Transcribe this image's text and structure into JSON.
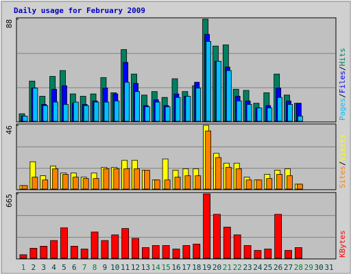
{
  "title": "Daily usage for February 2009",
  "categories": [
    "1",
    "2",
    "3",
    "4",
    "5",
    "6",
    "7",
    "8",
    "9",
    "10",
    "11",
    "12",
    "13",
    "14",
    "15",
    "16",
    "17",
    "18",
    "19",
    "20",
    "21",
    "22",
    "23",
    "24",
    "25",
    "26",
    "27",
    "28",
    "29",
    "30",
    "31"
  ],
  "category_colors": [
    "#008040",
    "#004040",
    "#004040",
    "#004040",
    "#004040",
    "#004040",
    "#008040",
    "#008040",
    "#004040",
    "#004040",
    "#004040",
    "#004040",
    "#004040",
    "#008040",
    "#008040",
    "#004040",
    "#004040",
    "#004040",
    "#004040",
    "#004040",
    "#008040",
    "#008040",
    "#004040",
    "#004040",
    "#004040",
    "#004040",
    "#004040",
    "#008040",
    "#008040",
    "#004040",
    "#004040"
  ],
  "chart_data": [
    {
      "type": "bar",
      "ylim": [
        0,
        88
      ],
      "yticks": [
        88
      ],
      "grid_divisions": 3,
      "legend_separator": "/",
      "series": [
        {
          "name": "Hits",
          "color": "#008060",
          "values": [
            7,
            35,
            22,
            39,
            44,
            24,
            22,
            24,
            38,
            25,
            62,
            41,
            23,
            26,
            21,
            37,
            26,
            31,
            88,
            65,
            66,
            28,
            27,
            16,
            25,
            41,
            23,
            16,
            0,
            0,
            0
          ]
        },
        {
          "name": "Files",
          "color": "#0000ff",
          "values": [
            5,
            29,
            15,
            28,
            31,
            16,
            15,
            18,
            29,
            24,
            51,
            33,
            14,
            19,
            14,
            24,
            22,
            34,
            75,
            52,
            47,
            22,
            18,
            12,
            14,
            29,
            18,
            16,
            0,
            0,
            0
          ]
        },
        {
          "name": "Pages",
          "color": "#00c0ff",
          "values": [
            5,
            29,
            14,
            17,
            15,
            17,
            14,
            17,
            17,
            18,
            34,
            26,
            13,
            17,
            13,
            21,
            22,
            29,
            69,
            52,
            44,
            18,
            15,
            12,
            12,
            21,
            15,
            5,
            0,
            0,
            0
          ]
        }
      ]
    },
    {
      "type": "bar",
      "ylim": [
        0,
        46
      ],
      "yticks": [
        46
      ],
      "grid_divisions": 3,
      "legend_separator": "/",
      "series": [
        {
          "name": "Visits",
          "color": "#ffff00",
          "values": [
            3,
            20,
            10,
            17,
            12,
            12,
            9,
            12,
            16,
            16,
            21,
            21,
            14,
            7,
            22,
            14,
            15,
            15,
            46,
            26,
            19,
            19,
            9,
            7,
            11,
            14,
            15,
            4,
            0,
            0,
            0
          ]
        },
        {
          "name": "Sites",
          "color": "#ff8000",
          "values": [
            3,
            9,
            7,
            15,
            11,
            9,
            8,
            8,
            15,
            15,
            15,
            15,
            14,
            7,
            7,
            9,
            10,
            10,
            42,
            23,
            16,
            15,
            7,
            7,
            8,
            11,
            10,
            4,
            0,
            0,
            0
          ]
        }
      ]
    },
    {
      "type": "bar",
      "ylim": [
        0,
        665
      ],
      "yticks": [
        665
      ],
      "grid_divisions": 3,
      "series": [
        {
          "name": "KBytes",
          "color": "#ff0000",
          "values": [
            43,
            109,
            130,
            188,
            318,
            130,
            101,
            275,
            188,
            246,
            311,
            210,
            116,
            137,
            137,
            101,
            137,
            152,
            665,
            456,
            325,
            246,
            137,
            87,
            101,
            456,
            87,
            116,
            0,
            0,
            0
          ]
        }
      ]
    }
  ]
}
